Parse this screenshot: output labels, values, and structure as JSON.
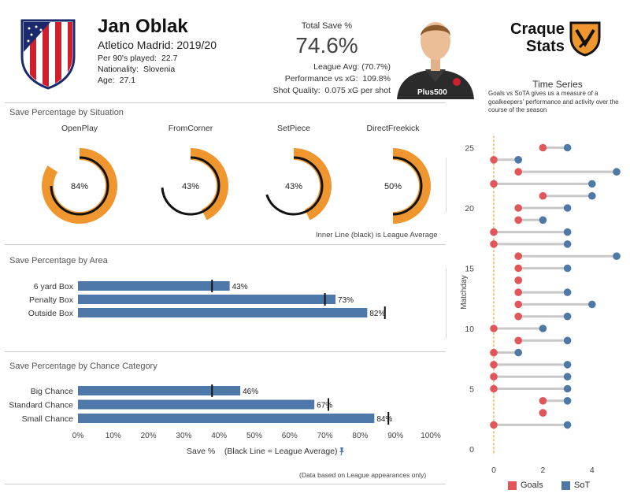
{
  "header": {
    "player_name": "Jan Oblak",
    "team_season": "Atletico Madrid: 2019/20",
    "per90_label": "Per 90's played:",
    "per90_value": "22.7",
    "nationality_label": "Nationality:",
    "nationality_value": "Slovenia",
    "age_label": "Age:",
    "age_value": "27.1",
    "total_save_label": "Total Save %",
    "total_save_value": "74.6%",
    "league_avg_text": "League Avg: (70.7%)",
    "perf_label": "Performance vs xG:",
    "perf_value": "109.8%",
    "shot_quality_label": "Shot Quality:",
    "shot_quality_value": "0.075 xG per shot",
    "brand_line1": "Craque",
    "brand_line2": "Stats",
    "photo_kit_text": "Plus500"
  },
  "sections": {
    "situation_title": "Save Percentage by Situation",
    "situation_note": "Inner Line (black) is League Average",
    "area_title": "Save Percentage by Area",
    "chance_title": "Save Percentage by Chance Category",
    "chance_xlabel": "Save %    (Black Line = League Average)",
    "footnote": "(Data based on League appearances only)"
  },
  "timeseries_text": {
    "title": "Time Series",
    "description": "Goals vs SoTA gives us a measure of a goalkeepers' performance and activity over the course of the season"
  },
  "colors": {
    "orange": "#f0962e",
    "bar_blue": "#4f78aa",
    "goals_red": "#e15759",
    "sot_blue": "#4e79a7",
    "connector": "#c8c8c8",
    "zero_line": "#e8a33a"
  },
  "chart_data": [
    {
      "type": "pie",
      "title": "Save Percentage by Situation",
      "categories": [
        "OpenPlay",
        "FromCorner",
        "SetPiece",
        "DirectFreekick"
      ],
      "values": [
        84,
        43,
        43,
        50
      ],
      "labels": [
        "84%",
        "43%",
        "43%",
        "50%"
      ],
      "league_average": [
        75,
        74,
        70,
        50
      ]
    },
    {
      "type": "bar",
      "title": "Save Percentage by Area",
      "orientation": "horizontal",
      "categories": [
        "6 yard Box",
        "Penalty Box",
        "Outside Box"
      ],
      "values": [
        43,
        73,
        82
      ],
      "labels": [
        "43%",
        "73%",
        "82%"
      ],
      "league_average": [
        38,
        70,
        87
      ],
      "xlim": [
        0,
        100
      ]
    },
    {
      "type": "bar",
      "title": "Save Percentage by Chance Category",
      "orientation": "horizontal",
      "categories": [
        "Big Chance",
        "Standard Chance",
        "Small Chance"
      ],
      "values": [
        46,
        67,
        84
      ],
      "labels": [
        "46%",
        "67%",
        "84%"
      ],
      "league_average": [
        38,
        71,
        88
      ],
      "xlim": [
        0,
        100
      ],
      "xticks": [
        "0%",
        "10%",
        "20%",
        "30%",
        "40%",
        "50%",
        "60%",
        "70%",
        "80%",
        "90%",
        "100%"
      ],
      "xlabel": "Save %    (Black Line = League Average)"
    },
    {
      "type": "scatter",
      "title": "Time Series",
      "subtitle": "Goals vs SoTA gives us a measure of a goalkeepers' performance and activity over the course of the season",
      "ylabel": "Matchday",
      "ylim": [
        0,
        26
      ],
      "xlim": [
        0,
        5
      ],
      "yticks": [
        0,
        5,
        10,
        15,
        20,
        25
      ],
      "xticks": [
        0,
        2,
        4
      ],
      "legend": "bottom",
      "series": [
        {
          "name": "Goals",
          "matchday": [
            25,
            24,
            23,
            22,
            21,
            20,
            19,
            18,
            17,
            16,
            15,
            14,
            13,
            12,
            11,
            10,
            9,
            8,
            7,
            6,
            5,
            4,
            3,
            2
          ],
          "values": [
            2,
            0,
            1,
            0,
            2,
            1,
            1,
            0,
            0,
            1,
            1,
            1,
            1,
            1,
            1,
            0,
            1,
            0,
            0,
            0,
            0,
            2,
            2,
            0
          ]
        },
        {
          "name": "SoT",
          "matchday": [
            25,
            24,
            23,
            22,
            21,
            20,
            19,
            18,
            17,
            16,
            15,
            14,
            13,
            12,
            11,
            10,
            9,
            8,
            7,
            6,
            5,
            4,
            3,
            2
          ],
          "values": [
            3,
            1,
            5,
            4,
            4,
            3,
            2,
            3,
            3,
            5,
            3,
            1,
            3,
            4,
            3,
            2,
            3,
            1,
            3,
            3,
            3,
            3,
            2,
            3
          ]
        }
      ]
    }
  ]
}
